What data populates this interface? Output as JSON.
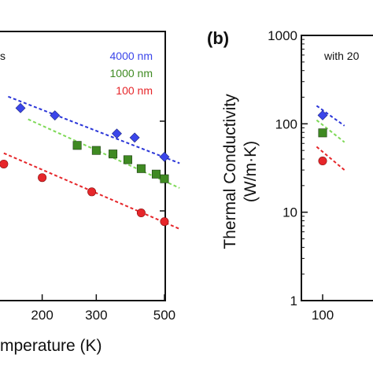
{
  "colors": {
    "s4000": "#3b46ea",
    "s1000": "#3f8a22",
    "s100": "#e6262a",
    "axis": "#111111",
    "fit4000": "#2a35d8",
    "fit1000": "#7ed957",
    "fit100": "#e6262a"
  },
  "chart_data": [
    {
      "panel": "a",
      "type": "scatter",
      "xlabel": "Temperature (K)",
      "xlabel_visible": "mperature (K)",
      "xscale": "log",
      "yscale": "log",
      "xticks": [
        200,
        300,
        500
      ],
      "ylim": [
        1,
        1000
      ],
      "annotation_visible": "s",
      "legend_placement": "top-right",
      "series": [
        {
          "name": "4000 nm",
          "color": "s4000",
          "marker": "diamond",
          "x": [
            170,
            220,
            350,
            400,
            500
          ],
          "y": [
            140,
            116,
            72.7,
            65.6,
            40
          ],
          "fit": {
            "x": [
              155,
              560
            ],
            "y": [
              188,
              34
            ]
          }
        },
        {
          "name": "1000 nm",
          "color": "s1000",
          "marker": "square",
          "x": [
            260,
            300,
            340,
            380,
            420,
            470,
            500
          ],
          "y": [
            53.7,
            47.2,
            43.1,
            37.2,
            29.6,
            25.7,
            22.8
          ],
          "fit": {
            "x": [
              180,
              560
            ],
            "y": [
              105,
              18
            ]
          }
        },
        {
          "name": "100 nm",
          "color": "s100",
          "marker": "circle",
          "x": [
            150,
            200,
            290,
            420,
            500
          ],
          "y": [
            33.3,
            23.5,
            16.3,
            9.5,
            7.6
          ],
          "fit": {
            "x": [
              150,
              560
            ],
            "y": [
              44,
              6.3
            ]
          }
        }
      ]
    },
    {
      "panel": "b",
      "type": "scatter",
      "ylabel": "Thermal Conductivity (W/m·K)",
      "ylabel_lines": [
        "Thermal Conductivity",
        "(W/m·K)"
      ],
      "yscale": "log",
      "yticks": [
        "1",
        "10",
        "100",
        "1000"
      ],
      "ylim": [
        1,
        1000
      ],
      "xticks": [
        100
      ],
      "annotation_visible": "with 20",
      "series": [
        {
          "name": "4000 nm",
          "color": "s4000",
          "marker": "diamond",
          "x": [
            100
          ],
          "y": [
            125
          ],
          "fit": {
            "x": [
              96,
              116
            ],
            "y": [
              160,
              95
            ]
          }
        },
        {
          "name": "1000 nm",
          "color": "s1000",
          "marker": "square",
          "x": [
            100
          ],
          "y": [
            79
          ],
          "fit": {
            "x": [
              96,
              116
            ],
            "y": [
              110,
              62
            ]
          }
        },
        {
          "name": "100 nm",
          "color": "s100",
          "marker": "circle",
          "x": [
            100
          ],
          "y": [
            38
          ],
          "fit": {
            "x": [
              96,
              116
            ],
            "y": [
              55,
              30
            ]
          }
        }
      ]
    }
  ],
  "labels": {
    "panel_b": "(b)"
  }
}
